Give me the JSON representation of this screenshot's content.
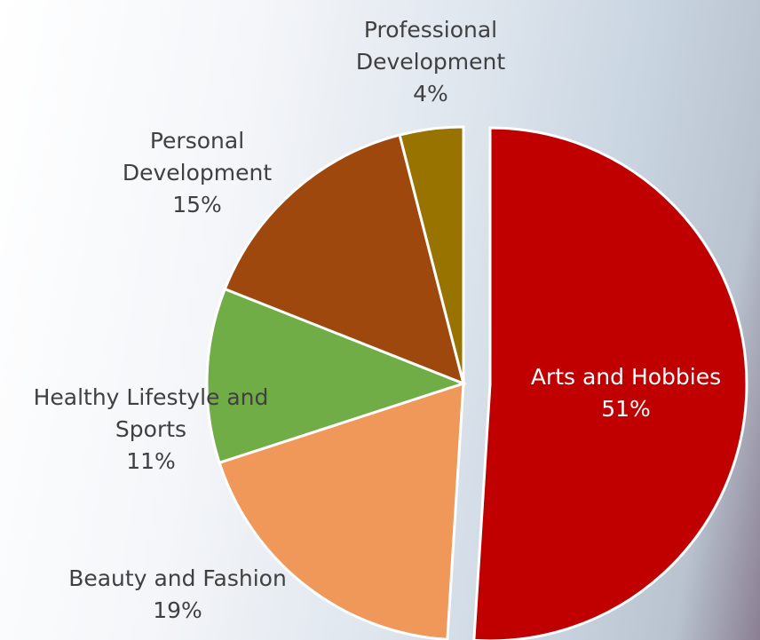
{
  "chart_data": {
    "type": "pie",
    "categories": [
      "Arts and Hobbies",
      "Beauty and Fashion",
      "Healthy Lifestyle and Sports",
      "Personal Development",
      "Professional Development"
    ],
    "values": [
      51,
      19,
      11,
      15,
      4
    ],
    "value_labels": [
      "51%",
      "19%",
      "11%",
      "15%",
      "4%"
    ],
    "colors": [
      "#c00000",
      "#f0975a",
      "#70ad47",
      "#9e480e",
      "#997300"
    ]
  }
}
